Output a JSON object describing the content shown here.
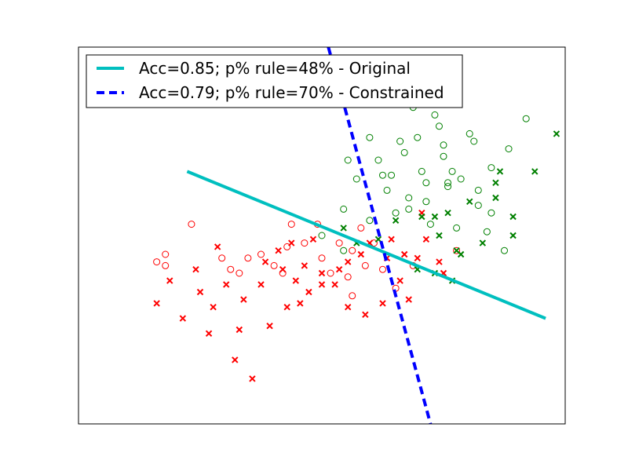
{
  "chart_data": {
    "type": "scatter",
    "title": "",
    "xlabel": "",
    "ylabel": "",
    "xlim": [
      -4,
      7.2
    ],
    "ylim": [
      -5,
      5
    ],
    "grid": false,
    "ticks_visible": false,
    "legend": {
      "placement": "top-left",
      "entries": [
        {
          "label": "Acc=0.85; p% rule=48% - Original",
          "color": "#00bfbf",
          "style": "solid"
        },
        {
          "label": "Acc=0.79; p% rule=70% - Constrained",
          "color": "#0000ff",
          "style": "dashed"
        }
      ]
    },
    "lines": [
      {
        "name": "Acc=0.85; p% rule=48% - Original",
        "color": "#00bfbf",
        "style": "solid",
        "x": [
          -1.5,
          6.75
        ],
        "y": [
          1.7,
          -2.2
        ]
      },
      {
        "name": "Acc=0.79; p% rule=70% - Constrained",
        "color": "#0000ff",
        "style": "dashed",
        "x": [
          1.75,
          4.1
        ],
        "y": [
          5.0,
          -5.0
        ]
      }
    ],
    "series": [
      {
        "group": "red-circle",
        "color": "#ff0000",
        "marker": "o",
        "points": [
          [
            -1.4,
            0.3
          ],
          [
            -2.2,
            -0.7
          ],
          [
            -2.0,
            -0.5
          ],
          [
            -0.7,
            -0.6
          ],
          [
            -0.5,
            -0.9
          ],
          [
            -0.3,
            -1.0
          ],
          [
            0.2,
            -0.5
          ],
          [
            0.5,
            -0.8
          ],
          [
            0.8,
            -0.3
          ],
          [
            0.9,
            0.3
          ],
          [
            -0.1,
            -0.6
          ],
          [
            1.2,
            -0.2
          ],
          [
            1.5,
            0.3
          ],
          [
            1.8,
            -1.0
          ],
          [
            2.3,
            -1.6
          ],
          [
            2.5,
            0.2
          ],
          [
            3.0,
            -0.9
          ],
          [
            2.0,
            -0.2
          ],
          [
            2.3,
            -0.4
          ],
          [
            1.6,
            -0.6
          ],
          [
            4.7,
            -0.4
          ],
          [
            -2.0,
            -0.8
          ],
          [
            3.7,
            -0.8
          ],
          [
            2.8,
            -0.2
          ],
          [
            0.7,
            -1.0
          ],
          [
            3.3,
            -1.4
          ],
          [
            2.6,
            -0.8
          ],
          [
            2.2,
            -1.1
          ]
        ]
      },
      {
        "group": "red-x",
        "color": "#ff0000",
        "marker": "x",
        "points": [
          [
            -1.2,
            -1.5
          ],
          [
            -0.9,
            -1.9
          ],
          [
            -0.3,
            -2.5
          ],
          [
            0.4,
            -2.4
          ],
          [
            0.8,
            -1.9
          ],
          [
            1.3,
            -1.5
          ],
          [
            1.6,
            -1.0
          ],
          [
            1.9,
            -1.3
          ],
          [
            2.2,
            -1.9
          ],
          [
            2.6,
            -2.1
          ],
          [
            3.0,
            -1.8
          ],
          [
            3.4,
            -1.2
          ],
          [
            3.8,
            -0.6
          ],
          [
            4.3,
            -0.7
          ],
          [
            1.0,
            -1.2
          ],
          [
            0.6,
            -0.4
          ],
          [
            -0.6,
            -1.3
          ],
          [
            -0.2,
            -1.7
          ],
          [
            0.2,
            -1.3
          ],
          [
            0.7,
            -0.9
          ],
          [
            1.2,
            -0.8
          ],
          [
            1.6,
            -1.3
          ],
          [
            2.2,
            -0.7
          ],
          [
            2.7,
            -0.2
          ],
          [
            3.2,
            -0.1
          ],
          [
            3.5,
            -0.5
          ],
          [
            -2.2,
            -1.8
          ],
          [
            -1.6,
            -2.2
          ],
          [
            -1.0,
            -2.6
          ],
          [
            -0.4,
            -3.3
          ],
          [
            0.0,
            -3.8
          ],
          [
            -1.9,
            -1.2
          ],
          [
            -1.3,
            -0.9
          ],
          [
            0.9,
            -0.2
          ],
          [
            1.4,
            -0.1
          ],
          [
            2.0,
            -0.9
          ],
          [
            2.5,
            -0.5
          ],
          [
            3.1,
            -0.6
          ],
          [
            3.6,
            -1.7
          ],
          [
            4.0,
            -0.1
          ],
          [
            4.4,
            -1.0
          ],
          [
            -0.8,
            -0.3
          ],
          [
            0.3,
            -0.7
          ],
          [
            1.1,
            -1.8
          ],
          [
            3.9,
            0.6
          ]
        ]
      },
      {
        "group": "green-circle",
        "color": "#008000",
        "marker": "o",
        "points": [
          [
            3.0,
            1.6
          ],
          [
            3.5,
            2.2
          ],
          [
            4.0,
            1.4
          ],
          [
            4.4,
            2.1
          ],
          [
            4.8,
            1.5
          ],
          [
            5.2,
            1.2
          ],
          [
            5.5,
            1.8
          ],
          [
            5.9,
            2.3
          ],
          [
            3.7,
            3.4
          ],
          [
            4.2,
            3.2
          ],
          [
            3.3,
            0.6
          ],
          [
            3.6,
            0.7
          ],
          [
            4.1,
            0.3
          ],
          [
            4.7,
            0.2
          ],
          [
            5.2,
            0.8
          ],
          [
            5.4,
            0.1
          ],
          [
            5.8,
            -0.4
          ],
          [
            3.1,
            1.2
          ],
          [
            3.6,
            1.0
          ],
          [
            4.5,
            1.3
          ],
          [
            4.0,
            0.9
          ],
          [
            2.1,
            0.7
          ],
          [
            2.7,
            0.4
          ],
          [
            5.5,
            0.6
          ],
          [
            1.6,
            0.0
          ],
          [
            2.1,
            -0.4
          ],
          [
            2.4,
            1.5
          ],
          [
            2.7,
            2.6
          ],
          [
            3.4,
            2.5
          ],
          [
            3.8,
            2.6
          ],
          [
            4.4,
            2.4
          ],
          [
            4.6,
            1.7
          ],
          [
            5.1,
            2.5
          ],
          [
            6.3,
            3.1
          ],
          [
            5.0,
            2.7
          ],
          [
            2.2,
            2.0
          ],
          [
            4.3,
            2.9
          ],
          [
            4.5,
            1.4
          ],
          [
            3.9,
            1.7
          ],
          [
            2.9,
            2.0
          ],
          [
            3.2,
            1.6
          ]
        ]
      },
      {
        "group": "green-x",
        "color": "#008000",
        "marker": "x",
        "points": [
          [
            4.5,
            0.6
          ],
          [
            5.0,
            0.9
          ],
          [
            5.6,
            1.4
          ],
          [
            6.0,
            0.5
          ],
          [
            6.5,
            1.7
          ],
          [
            7.0,
            2.7
          ],
          [
            5.6,
            1.0
          ],
          [
            6.0,
            0.0
          ],
          [
            4.7,
            -0.4
          ],
          [
            5.3,
            -0.2
          ],
          [
            3.9,
            0.5
          ],
          [
            4.3,
            0.0
          ],
          [
            4.6,
            -1.2
          ],
          [
            4.2,
            -1.0
          ],
          [
            4.8,
            -0.5
          ],
          [
            3.3,
            0.4
          ],
          [
            3.8,
            -0.9
          ],
          [
            2.1,
            0.2
          ],
          [
            2.4,
            -0.2
          ],
          [
            5.7,
            1.7
          ],
          [
            2.9,
            -0.1
          ],
          [
            4.2,
            0.5
          ]
        ]
      }
    ]
  }
}
